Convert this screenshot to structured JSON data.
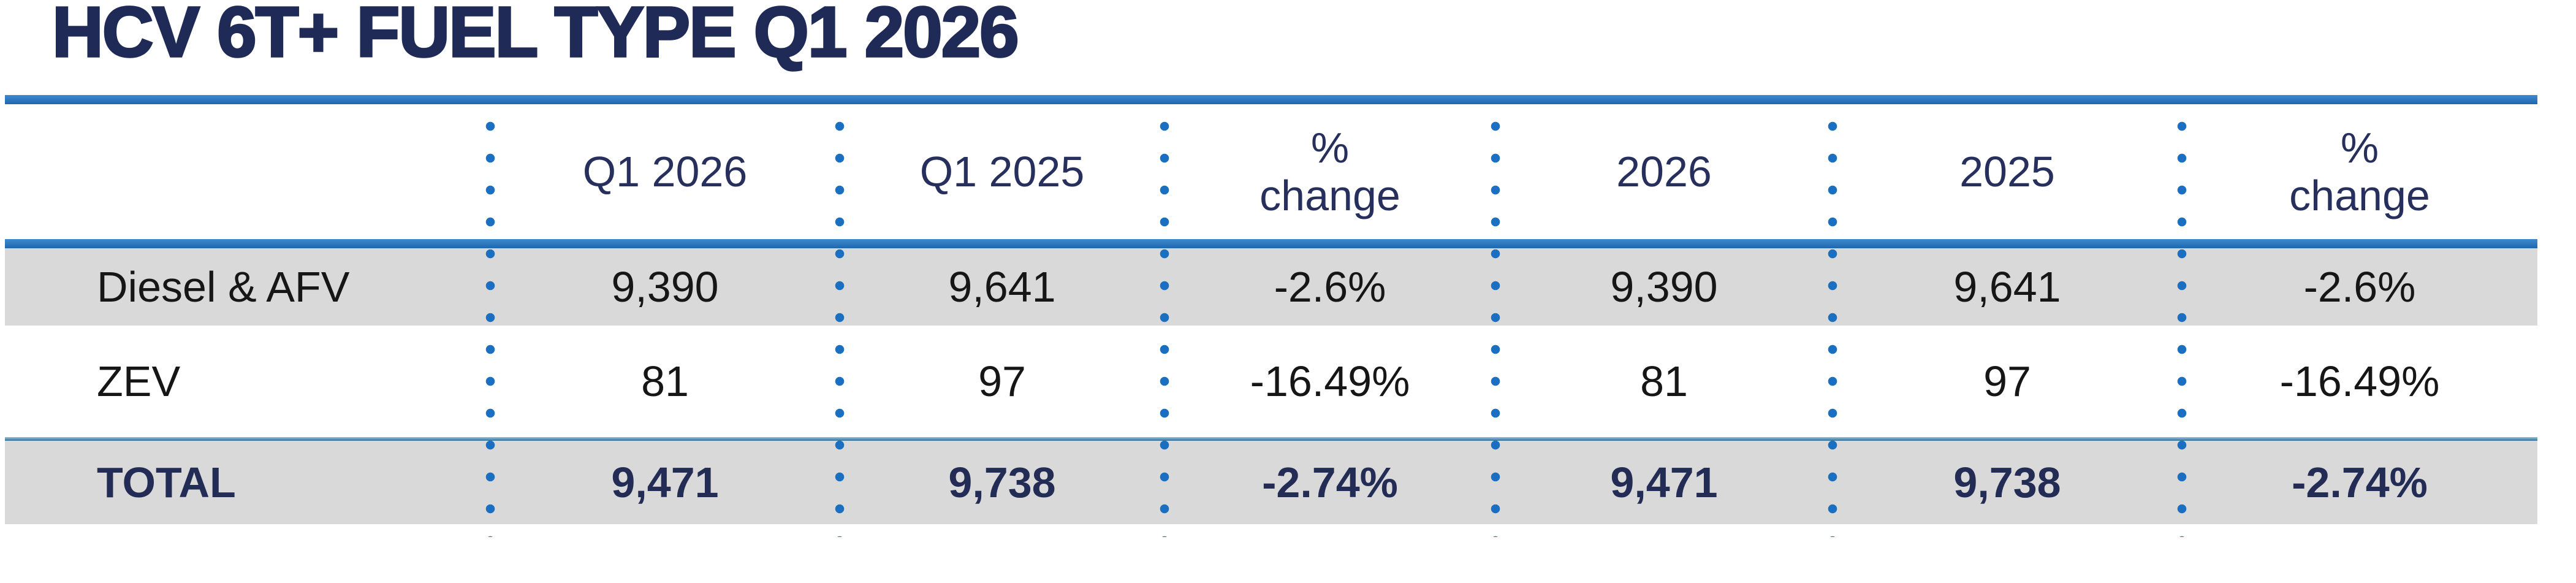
{
  "title": "HCV 6T+ FUEL TYPE Q1 2026",
  "colors": {
    "title_navy": "#1F2A57",
    "header_navy": "#27305C",
    "total_navy": "#232C55",
    "body_black": "#161616",
    "rule_blue": "#2A79C4",
    "thin_rule_blue": "#49809F",
    "dot_blue": "#1B6FC0",
    "row_gray": "#D9D9D9"
  },
  "table": {
    "columns": [
      "Q1 2026",
      "Q1 2025",
      "% change",
      "2026",
      "2025",
      "% change"
    ],
    "rows": [
      {
        "label": "Diesel & AFV",
        "values": [
          "9,390",
          "9,641",
          "-2.6%",
          "9,390",
          "9,641",
          "-2.6%"
        ]
      },
      {
        "label": "ZEV",
        "values": [
          "81",
          "97",
          "-16.49%",
          "81",
          "97",
          "-16.49%"
        ]
      },
      {
        "label": "TOTAL",
        "values": [
          "9,471",
          "9,738",
          "-2.74%",
          "9,471",
          "9,738",
          "-2.74%"
        ]
      }
    ]
  },
  "chart_data": {
    "type": "table",
    "title": "HCV 6T+ FUEL TYPE Q1 2026",
    "columns": [
      "",
      "Q1 2026",
      "Q1 2025",
      "% change",
      "2026",
      "2025",
      "% change"
    ],
    "rows": [
      [
        "Diesel & AFV",
        "9,390",
        "9,641",
        "-2.6%",
        "9,390",
        "9,641",
        "-2.6%"
      ],
      [
        "ZEV",
        "81",
        "97",
        "-16.49%",
        "81",
        "97",
        "-16.49%"
      ],
      [
        "TOTAL",
        "9,471",
        "9,738",
        "-2.74%",
        "9,471",
        "9,738",
        "-2.74%"
      ]
    ],
    "numeric": {
      "categories": [
        "Diesel & AFV",
        "ZEV",
        "TOTAL"
      ],
      "q1_2026": [
        9390,
        81,
        9471
      ],
      "q1_2025": [
        9641,
        97,
        9738
      ],
      "q1_pct_change": [
        -2.6,
        -16.49,
        -2.74
      ],
      "ytd_2026": [
        9390,
        81,
        9471
      ],
      "ytd_2025": [
        9641,
        97,
        9738
      ],
      "ytd_pct_change": [
        -2.6,
        -16.49,
        -2.74
      ]
    }
  }
}
